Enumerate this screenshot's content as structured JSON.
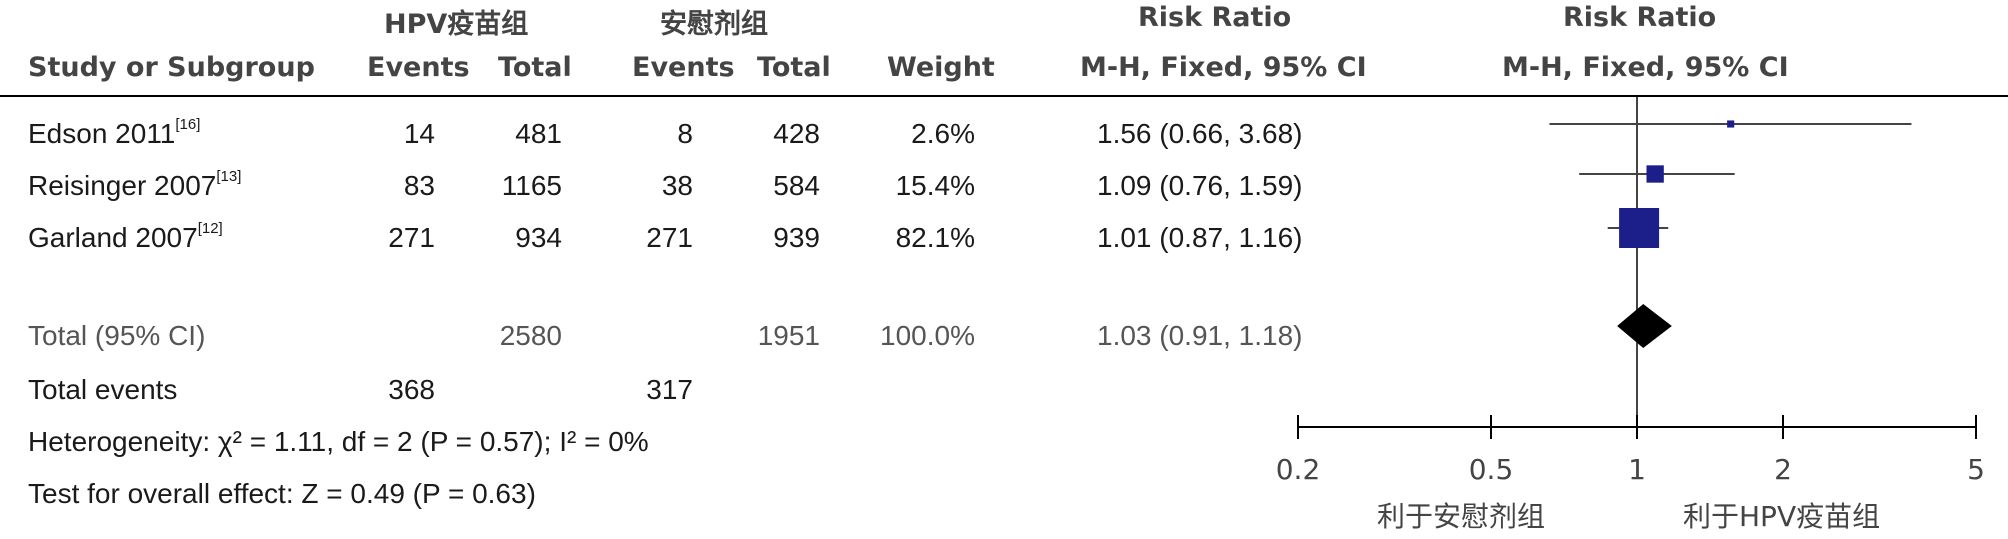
{
  "header": {
    "group1": "HPV疫苗组",
    "group2": "安慰剂组",
    "rr_title1": "Risk Ratio",
    "rr_title2": "Risk Ratio",
    "study_col": "Study or Subgroup",
    "events1": "Events",
    "total1": "Total",
    "events2": "Events",
    "total2": "Total",
    "weight": "Weight",
    "method1": "M-H, Fixed, 95% CI",
    "method2": "M-H, Fixed, 95% CI"
  },
  "studies": [
    {
      "name": "Edson 2011",
      "ref": "[16]",
      "e1": "14",
      "t1": "481",
      "e2": "8",
      "t2": "428",
      "weight": "2.6%",
      "ci": "1.56 (0.66, 3.68)"
    },
    {
      "name": "Reisinger 2007",
      "ref": "[13]",
      "e1": "83",
      "t1": "1165",
      "e2": "38",
      "t2": "584",
      "weight": "15.4%",
      "ci": "1.09 (0.76, 1.59)"
    },
    {
      "name": "Garland 2007",
      "ref": "[12]",
      "e1": "271",
      "t1": "934",
      "e2": "271",
      "t2": "939",
      "weight": "82.1%",
      "ci": "1.01 (0.87, 1.16)"
    }
  ],
  "total": {
    "label": "Total (95% CI)",
    "t1": "2580",
    "t2": "1951",
    "weight": "100.0%",
    "ci": "1.03 (0.91, 1.18)"
  },
  "total_events": {
    "label": "Total events",
    "e1": "368",
    "e2": "317"
  },
  "heterogeneity": "Heterogeneity: χ² = 1.11, df = 2 (P = 0.57); I² = 0%",
  "overall_effect": "Test for overall effect: Z = 0.49 (P = 0.63)",
  "axis": {
    "ticks": [
      "0.2",
      "0.5",
      "1",
      "2",
      "5"
    ],
    "favours_left": "利于安慰剂组",
    "favours_right": "利于HPV疫苗组"
  },
  "chart_data": {
    "type": "forest",
    "scale": "log",
    "xlim": [
      0.2,
      5
    ],
    "null_line": 1,
    "studies": [
      {
        "name": "Edson 2011",
        "rr": 1.56,
        "lo": 0.66,
        "hi": 3.68,
        "weight": 2.6
      },
      {
        "name": "Reisinger 2007",
        "rr": 1.09,
        "lo": 0.76,
        "hi": 1.59,
        "weight": 15.4
      },
      {
        "name": "Garland 2007",
        "rr": 1.01,
        "lo": 0.87,
        "hi": 1.16,
        "weight": 82.1
      }
    ],
    "pooled": {
      "rr": 1.03,
      "lo": 0.91,
      "hi": 1.18
    },
    "colors": {
      "box": "#1c1f8a",
      "diamond": "#000000",
      "line": "#444444"
    }
  }
}
